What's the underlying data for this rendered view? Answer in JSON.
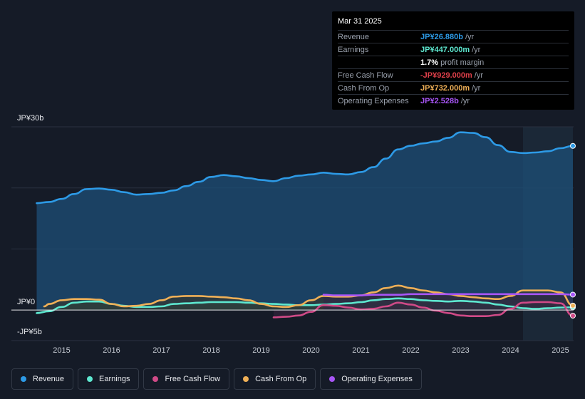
{
  "tooltip": {
    "date": "Mar 31 2025",
    "rows": [
      {
        "label": "Revenue",
        "value": "JP¥26.880b",
        "unit": "/yr",
        "color": "#2d9ae6"
      },
      {
        "label": "Earnings",
        "value": "JP¥447.000m",
        "unit": "/yr",
        "color": "#5ee8d0"
      },
      {
        "label": "",
        "value": "1.7%",
        "unit": "profit margin",
        "color": "#ffffff"
      },
      {
        "label": "Free Cash Flow",
        "value": "-JP¥929.000m",
        "unit": "/yr",
        "color": "#e0404a"
      },
      {
        "label": "Cash From Op",
        "value": "JP¥732.000m",
        "unit": "/yr",
        "color": "#f0b057"
      },
      {
        "label": "Operating Expenses",
        "value": "JP¥2.528b",
        "unit": "/yr",
        "color": "#a855f7"
      }
    ]
  },
  "legend": [
    {
      "label": "Revenue",
      "color": "#2d9ae6"
    },
    {
      "label": "Earnings",
      "color": "#5ee8d0"
    },
    {
      "label": "Free Cash Flow",
      "color": "#d04a87"
    },
    {
      "label": "Cash From Op",
      "color": "#f0b057"
    },
    {
      "label": "Operating Expenses",
      "color": "#a855f7"
    }
  ],
  "chart_data": {
    "type": "line",
    "ylim": [
      -5,
      30
    ],
    "ytick_labels": [
      {
        "value": 30,
        "label": "JP¥30b"
      },
      {
        "value": 0,
        "label": "JP¥0"
      },
      {
        "value": -5,
        "label": "-JP¥5b"
      }
    ],
    "xlim": [
      2014.45,
      2025.25
    ],
    "xtick_labels": [
      "2015",
      "2016",
      "2017",
      "2018",
      "2019",
      "2020",
      "2021",
      "2022",
      "2023",
      "2024",
      "2025"
    ],
    "highlight_from": 2024.25,
    "series": [
      {
        "name": "Revenue",
        "color": "#2d9ae6",
        "fill": true,
        "points": [
          [
            2014.5,
            17.5
          ],
          [
            2014.75,
            17.7
          ],
          [
            2015.0,
            18.2
          ],
          [
            2015.25,
            19.0
          ],
          [
            2015.5,
            19.8
          ],
          [
            2015.75,
            19.9
          ],
          [
            2016.0,
            19.7
          ],
          [
            2016.25,
            19.3
          ],
          [
            2016.5,
            18.9
          ],
          [
            2016.75,
            19.0
          ],
          [
            2017.0,
            19.2
          ],
          [
            2017.25,
            19.6
          ],
          [
            2017.5,
            20.3
          ],
          [
            2017.75,
            21.0
          ],
          [
            2018.0,
            21.8
          ],
          [
            2018.25,
            22.1
          ],
          [
            2018.5,
            21.9
          ],
          [
            2018.75,
            21.6
          ],
          [
            2019.0,
            21.3
          ],
          [
            2019.25,
            21.1
          ],
          [
            2019.5,
            21.6
          ],
          [
            2019.75,
            22.0
          ],
          [
            2020.0,
            22.2
          ],
          [
            2020.25,
            22.5
          ],
          [
            2020.5,
            22.3
          ],
          [
            2020.75,
            22.2
          ],
          [
            2021.0,
            22.6
          ],
          [
            2021.25,
            23.4
          ],
          [
            2021.5,
            24.8
          ],
          [
            2021.75,
            26.3
          ],
          [
            2022.0,
            26.9
          ],
          [
            2022.25,
            27.3
          ],
          [
            2022.5,
            27.6
          ],
          [
            2022.75,
            28.2
          ],
          [
            2023.0,
            29.1
          ],
          [
            2023.25,
            29.0
          ],
          [
            2023.5,
            28.3
          ],
          [
            2023.75,
            27.0
          ],
          [
            2024.0,
            25.9
          ],
          [
            2024.25,
            25.7
          ],
          [
            2024.5,
            25.8
          ],
          [
            2024.75,
            26.0
          ],
          [
            2025.0,
            26.5
          ],
          [
            2025.25,
            26.88
          ]
        ]
      },
      {
        "name": "Earnings",
        "color": "#5ee8d0",
        "fill": true,
        "points": [
          [
            2014.5,
            -0.5
          ],
          [
            2014.75,
            -0.2
          ],
          [
            2015.0,
            0.5
          ],
          [
            2015.25,
            1.2
          ],
          [
            2015.5,
            1.4
          ],
          [
            2015.75,
            1.4
          ],
          [
            2016.0,
            1.0
          ],
          [
            2016.25,
            0.7
          ],
          [
            2016.5,
            0.5
          ],
          [
            2016.75,
            0.5
          ],
          [
            2017.0,
            0.6
          ],
          [
            2017.25,
            1.0
          ],
          [
            2017.5,
            1.1
          ],
          [
            2017.75,
            1.2
          ],
          [
            2018.0,
            1.3
          ],
          [
            2018.25,
            1.3
          ],
          [
            2018.5,
            1.3
          ],
          [
            2018.75,
            1.2
          ],
          [
            2019.0,
            1.1
          ],
          [
            2019.25,
            1.0
          ],
          [
            2019.5,
            0.9
          ],
          [
            2019.75,
            0.8
          ],
          [
            2020.0,
            0.8
          ],
          [
            2020.25,
            0.9
          ],
          [
            2020.5,
            1.0
          ],
          [
            2020.75,
            1.1
          ],
          [
            2021.0,
            1.3
          ],
          [
            2021.25,
            1.6
          ],
          [
            2021.5,
            1.8
          ],
          [
            2021.75,
            1.9
          ],
          [
            2022.0,
            1.8
          ],
          [
            2022.25,
            1.6
          ],
          [
            2022.5,
            1.5
          ],
          [
            2022.75,
            1.4
          ],
          [
            2023.0,
            1.5
          ],
          [
            2023.25,
            1.4
          ],
          [
            2023.5,
            1.2
          ],
          [
            2023.75,
            0.9
          ],
          [
            2024.0,
            0.6
          ],
          [
            2024.25,
            0.3
          ],
          [
            2024.5,
            0.2
          ],
          [
            2024.75,
            0.3
          ],
          [
            2025.0,
            0.4
          ],
          [
            2025.25,
            0.447
          ]
        ]
      },
      {
        "name": "Free Cash Flow",
        "color": "#d04a87",
        "fill": true,
        "points": [
          [
            2019.25,
            -1.2
          ],
          [
            2019.5,
            -1.1
          ],
          [
            2019.75,
            -0.9
          ],
          [
            2020.0,
            -0.3
          ],
          [
            2020.25,
            0.8
          ],
          [
            2020.5,
            0.7
          ],
          [
            2020.75,
            0.4
          ],
          [
            2021.0,
            0.1
          ],
          [
            2021.25,
            0.2
          ],
          [
            2021.5,
            0.6
          ],
          [
            2021.75,
            1.2
          ],
          [
            2022.0,
            0.9
          ],
          [
            2022.25,
            0.4
          ],
          [
            2022.5,
            -0.1
          ],
          [
            2022.75,
            -0.5
          ],
          [
            2023.0,
            -0.9
          ],
          [
            2023.25,
            -1.0
          ],
          [
            2023.5,
            -1.0
          ],
          [
            2023.75,
            -0.8
          ],
          [
            2024.0,
            0.2
          ],
          [
            2024.25,
            1.2
          ],
          [
            2024.5,
            1.3
          ],
          [
            2024.75,
            1.3
          ],
          [
            2025.0,
            1.1
          ],
          [
            2025.25,
            -0.929
          ]
        ]
      },
      {
        "name": "Cash From Op",
        "color": "#f0b057",
        "fill": true,
        "points": [
          [
            2014.65,
            0.6
          ],
          [
            2014.75,
            1.0
          ],
          [
            2015.0,
            1.6
          ],
          [
            2015.25,
            1.8
          ],
          [
            2015.5,
            1.8
          ],
          [
            2015.75,
            1.7
          ],
          [
            2016.0,
            1.0
          ],
          [
            2016.25,
            0.6
          ],
          [
            2016.5,
            0.7
          ],
          [
            2016.75,
            1.0
          ],
          [
            2017.0,
            1.6
          ],
          [
            2017.25,
            2.2
          ],
          [
            2017.5,
            2.3
          ],
          [
            2017.75,
            2.3
          ],
          [
            2018.0,
            2.2
          ],
          [
            2018.25,
            2.1
          ],
          [
            2018.5,
            1.9
          ],
          [
            2018.75,
            1.6
          ],
          [
            2019.0,
            1.0
          ],
          [
            2019.25,
            0.6
          ],
          [
            2019.5,
            0.5
          ],
          [
            2019.75,
            0.8
          ],
          [
            2020.0,
            1.6
          ],
          [
            2020.25,
            2.3
          ],
          [
            2020.5,
            2.2
          ],
          [
            2020.75,
            2.2
          ],
          [
            2021.0,
            2.4
          ],
          [
            2021.25,
            2.9
          ],
          [
            2021.5,
            3.6
          ],
          [
            2021.75,
            4.0
          ],
          [
            2022.0,
            3.6
          ],
          [
            2022.25,
            3.2
          ],
          [
            2022.5,
            2.9
          ],
          [
            2022.75,
            2.6
          ],
          [
            2023.0,
            2.3
          ],
          [
            2023.25,
            2.1
          ],
          [
            2023.5,
            1.9
          ],
          [
            2023.75,
            1.8
          ],
          [
            2024.0,
            2.3
          ],
          [
            2024.25,
            3.2
          ],
          [
            2024.5,
            3.2
          ],
          [
            2024.75,
            3.2
          ],
          [
            2025.0,
            2.9
          ],
          [
            2025.25,
            0.732
          ]
        ]
      },
      {
        "name": "Operating Expenses",
        "color": "#a855f7",
        "fill": true,
        "points": [
          [
            2020.25,
            2.5
          ],
          [
            2020.5,
            2.4
          ],
          [
            2020.75,
            2.4
          ],
          [
            2021.0,
            2.4
          ],
          [
            2021.25,
            2.5
          ],
          [
            2021.5,
            2.5
          ],
          [
            2021.75,
            2.5
          ],
          [
            2022.0,
            2.6
          ],
          [
            2022.25,
            2.6
          ],
          [
            2022.5,
            2.6
          ],
          [
            2022.75,
            2.6
          ],
          [
            2023.0,
            2.6
          ],
          [
            2023.25,
            2.6
          ],
          [
            2023.5,
            2.6
          ],
          [
            2023.75,
            2.6
          ],
          [
            2024.0,
            2.6
          ],
          [
            2024.25,
            2.6
          ],
          [
            2024.5,
            2.6
          ],
          [
            2024.75,
            2.6
          ],
          [
            2025.0,
            2.6
          ],
          [
            2025.25,
            2.528
          ]
        ]
      }
    ]
  }
}
